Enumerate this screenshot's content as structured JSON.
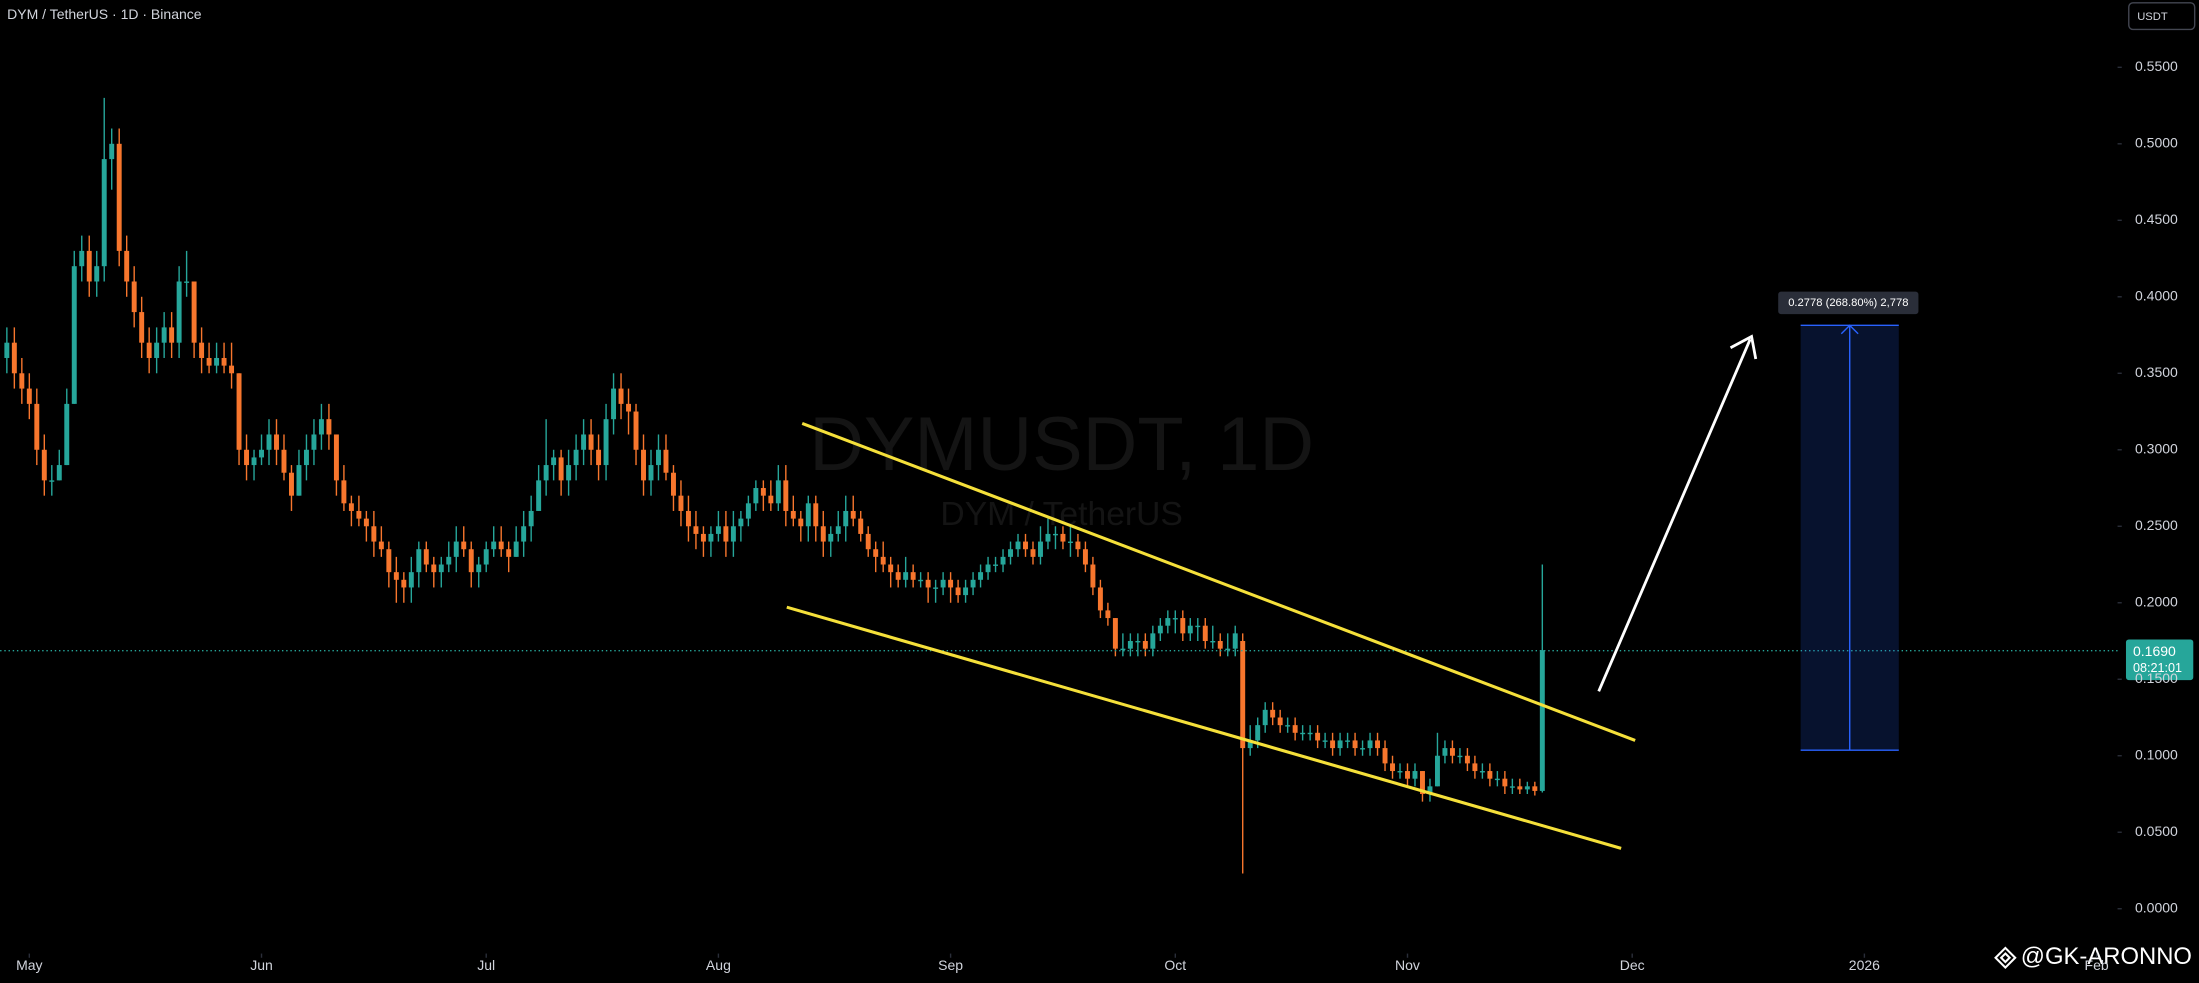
{
  "chart_data": {
    "type": "candlestick",
    "title": "DYM / TetherUS · 1D · Binance",
    "watermark": "DYMUSDT, 1D",
    "watermark_subtitle": "DYM / TetherUS",
    "currency": "USDT",
    "price_label": "0.1690",
    "countdown": "08:21:01",
    "measure_label": "0.2778 (268.80%) 2,778",
    "credit": "@GK-ARONNO",
    "up_color": "#26a69a",
    "down_color": "#f7762d",
    "xlim": [
      -0.9,
      281.8
    ],
    "xticks": [
      {
        "value": 3,
        "label": "May"
      },
      {
        "value": 34,
        "label": "Jun"
      },
      {
        "value": 64,
        "label": "Jul"
      },
      {
        "value": 95,
        "label": "Aug"
      },
      {
        "value": 126,
        "label": "Sep"
      },
      {
        "value": 156,
        "label": "Oct"
      },
      {
        "value": 187,
        "label": "Nov"
      },
      {
        "value": 217,
        "label": "Dec"
      },
      {
        "value": 248,
        "label": "2026"
      },
      {
        "value": 279,
        "label": "Feb"
      }
    ],
    "ylim": [
      -0.0293,
      0.594
    ],
    "yticks": [
      {
        "value": 0,
        "label": "0.0000"
      },
      {
        "value": 0.05,
        "label": "0.0500"
      },
      {
        "value": 0.1,
        "label": "0.1000"
      },
      {
        "value": 0.15,
        "label": "0.1500"
      },
      {
        "value": 0.2,
        "label": "0.2000"
      },
      {
        "value": 0.25,
        "label": "0.2500"
      },
      {
        "value": 0.3,
        "label": "0.3000"
      },
      {
        "value": 0.35,
        "label": "0.3500"
      },
      {
        "value": 0.4,
        "label": "0.4000"
      },
      {
        "value": 0.45,
        "label": "0.4500"
      },
      {
        "value": 0.5,
        "label": "0.5000"
      },
      {
        "value": 0.55,
        "label": "0.5500"
      }
    ],
    "candles": [
      [
        0.36,
        0.38,
        0.35,
        0.37
      ],
      [
        0.37,
        0.38,
        0.34,
        0.35
      ],
      [
        0.35,
        0.36,
        0.33,
        0.34
      ],
      [
        0.34,
        0.35,
        0.32,
        0.33
      ],
      [
        0.33,
        0.34,
        0.29,
        0.3
      ],
      [
        0.3,
        0.31,
        0.27,
        0.28
      ],
      [
        0.28,
        0.29,
        0.27,
        0.28
      ],
      [
        0.28,
        0.3,
        0.28,
        0.29
      ],
      [
        0.29,
        0.34,
        0.29,
        0.33
      ],
      [
        0.33,
        0.43,
        0.33,
        0.42
      ],
      [
        0.42,
        0.44,
        0.41,
        0.43
      ],
      [
        0.43,
        0.44,
        0.4,
        0.41
      ],
      [
        0.41,
        0.43,
        0.4,
        0.42
      ],
      [
        0.42,
        0.53,
        0.41,
        0.49
      ],
      [
        0.49,
        0.51,
        0.47,
        0.5
      ],
      [
        0.5,
        0.51,
        0.42,
        0.43
      ],
      [
        0.43,
        0.44,
        0.4,
        0.41
      ],
      [
        0.41,
        0.42,
        0.38,
        0.39
      ],
      [
        0.39,
        0.4,
        0.36,
        0.37
      ],
      [
        0.37,
        0.38,
        0.35,
        0.36
      ],
      [
        0.36,
        0.38,
        0.35,
        0.37
      ],
      [
        0.37,
        0.39,
        0.36,
        0.38
      ],
      [
        0.38,
        0.39,
        0.36,
        0.37
      ],
      [
        0.37,
        0.42,
        0.36,
        0.41
      ],
      [
        0.41,
        0.43,
        0.4,
        0.41
      ],
      [
        0.41,
        0.41,
        0.36,
        0.37
      ],
      [
        0.37,
        0.38,
        0.35,
        0.36
      ],
      [
        0.36,
        0.37,
        0.35,
        0.355
      ],
      [
        0.355,
        0.37,
        0.35,
        0.36
      ],
      [
        0.36,
        0.37,
        0.35,
        0.355
      ],
      [
        0.355,
        0.37,
        0.34,
        0.35
      ],
      [
        0.35,
        0.35,
        0.29,
        0.3
      ],
      [
        0.3,
        0.31,
        0.28,
        0.29
      ],
      [
        0.29,
        0.3,
        0.28,
        0.295
      ],
      [
        0.295,
        0.31,
        0.29,
        0.3
      ],
      [
        0.3,
        0.32,
        0.29,
        0.31
      ],
      [
        0.31,
        0.32,
        0.29,
        0.3
      ],
      [
        0.3,
        0.31,
        0.28,
        0.285
      ],
      [
        0.285,
        0.29,
        0.26,
        0.27
      ],
      [
        0.27,
        0.3,
        0.27,
        0.29
      ],
      [
        0.29,
        0.31,
        0.28,
        0.3
      ],
      [
        0.3,
        0.32,
        0.29,
        0.31
      ],
      [
        0.31,
        0.33,
        0.3,
        0.32
      ],
      [
        0.32,
        0.33,
        0.3,
        0.31
      ],
      [
        0.31,
        0.31,
        0.27,
        0.28
      ],
      [
        0.28,
        0.29,
        0.26,
        0.265
      ],
      [
        0.265,
        0.27,
        0.25,
        0.26
      ],
      [
        0.26,
        0.27,
        0.25,
        0.255
      ],
      [
        0.255,
        0.26,
        0.24,
        0.25
      ],
      [
        0.25,
        0.26,
        0.23,
        0.24
      ],
      [
        0.24,
        0.25,
        0.23,
        0.235
      ],
      [
        0.235,
        0.24,
        0.21,
        0.22
      ],
      [
        0.22,
        0.23,
        0.2,
        0.215
      ],
      [
        0.215,
        0.22,
        0.2,
        0.21
      ],
      [
        0.21,
        0.23,
        0.2,
        0.22
      ],
      [
        0.22,
        0.24,
        0.21,
        0.235
      ],
      [
        0.235,
        0.24,
        0.22,
        0.225
      ],
      [
        0.225,
        0.23,
        0.21,
        0.22
      ],
      [
        0.22,
        0.23,
        0.21,
        0.225
      ],
      [
        0.225,
        0.24,
        0.22,
        0.23
      ],
      [
        0.23,
        0.25,
        0.22,
        0.24
      ],
      [
        0.24,
        0.25,
        0.23,
        0.235
      ],
      [
        0.235,
        0.24,
        0.21,
        0.22
      ],
      [
        0.22,
        0.23,
        0.21,
        0.225
      ],
      [
        0.225,
        0.24,
        0.22,
        0.235
      ],
      [
        0.235,
        0.25,
        0.23,
        0.24
      ],
      [
        0.24,
        0.25,
        0.23,
        0.235
      ],
      [
        0.235,
        0.24,
        0.22,
        0.23
      ],
      [
        0.23,
        0.25,
        0.23,
        0.24
      ],
      [
        0.24,
        0.26,
        0.23,
        0.25
      ],
      [
        0.25,
        0.27,
        0.24,
        0.26
      ],
      [
        0.26,
        0.29,
        0.26,
        0.28
      ],
      [
        0.28,
        0.32,
        0.27,
        0.29
      ],
      [
        0.29,
        0.3,
        0.28,
        0.295
      ],
      [
        0.295,
        0.3,
        0.27,
        0.28
      ],
      [
        0.28,
        0.3,
        0.27,
        0.29
      ],
      [
        0.29,
        0.31,
        0.28,
        0.3
      ],
      [
        0.3,
        0.32,
        0.29,
        0.31
      ],
      [
        0.31,
        0.32,
        0.29,
        0.3
      ],
      [
        0.3,
        0.31,
        0.28,
        0.29
      ],
      [
        0.29,
        0.33,
        0.28,
        0.32
      ],
      [
        0.32,
        0.35,
        0.31,
        0.34
      ],
      [
        0.34,
        0.35,
        0.32,
        0.33
      ],
      [
        0.33,
        0.34,
        0.31,
        0.325
      ],
      [
        0.325,
        0.33,
        0.29,
        0.3
      ],
      [
        0.3,
        0.31,
        0.27,
        0.28
      ],
      [
        0.28,
        0.3,
        0.27,
        0.29
      ],
      [
        0.29,
        0.31,
        0.28,
        0.3
      ],
      [
        0.3,
        0.31,
        0.28,
        0.285
      ],
      [
        0.285,
        0.29,
        0.26,
        0.27
      ],
      [
        0.27,
        0.28,
        0.25,
        0.26
      ],
      [
        0.26,
        0.27,
        0.24,
        0.25
      ],
      [
        0.25,
        0.26,
        0.235,
        0.245
      ],
      [
        0.245,
        0.25,
        0.23,
        0.24
      ],
      [
        0.24,
        0.25,
        0.23,
        0.245
      ],
      [
        0.245,
        0.26,
        0.24,
        0.25
      ],
      [
        0.25,
        0.26,
        0.23,
        0.24
      ],
      [
        0.24,
        0.26,
        0.23,
        0.25
      ],
      [
        0.25,
        0.26,
        0.24,
        0.255
      ],
      [
        0.255,
        0.27,
        0.25,
        0.265
      ],
      [
        0.265,
        0.28,
        0.26,
        0.275
      ],
      [
        0.275,
        0.28,
        0.26,
        0.27
      ],
      [
        0.27,
        0.28,
        0.26,
        0.265
      ],
      [
        0.265,
        0.29,
        0.26,
        0.28
      ],
      [
        0.28,
        0.29,
        0.25,
        0.26
      ],
      [
        0.26,
        0.27,
        0.25,
        0.255
      ],
      [
        0.255,
        0.26,
        0.24,
        0.25
      ],
      [
        0.25,
        0.27,
        0.24,
        0.265
      ],
      [
        0.265,
        0.27,
        0.24,
        0.25
      ],
      [
        0.25,
        0.26,
        0.23,
        0.24
      ],
      [
        0.24,
        0.25,
        0.23,
        0.245
      ],
      [
        0.245,
        0.26,
        0.24,
        0.25
      ],
      [
        0.25,
        0.27,
        0.24,
        0.26
      ],
      [
        0.26,
        0.27,
        0.25,
        0.255
      ],
      [
        0.255,
        0.26,
        0.24,
        0.245
      ],
      [
        0.245,
        0.25,
        0.23,
        0.235
      ],
      [
        0.235,
        0.24,
        0.22,
        0.23
      ],
      [
        0.23,
        0.24,
        0.22,
        0.225
      ],
      [
        0.225,
        0.23,
        0.21,
        0.22
      ],
      [
        0.22,
        0.225,
        0.21,
        0.215
      ],
      [
        0.215,
        0.23,
        0.21,
        0.22
      ],
      [
        0.22,
        0.225,
        0.21,
        0.215
      ],
      [
        0.215,
        0.22,
        0.21,
        0.215
      ],
      [
        0.215,
        0.22,
        0.2,
        0.21
      ],
      [
        0.21,
        0.215,
        0.2,
        0.21
      ],
      [
        0.21,
        0.22,
        0.205,
        0.215
      ],
      [
        0.215,
        0.22,
        0.2,
        0.21
      ],
      [
        0.21,
        0.215,
        0.2,
        0.205
      ],
      [
        0.205,
        0.215,
        0.2,
        0.21
      ],
      [
        0.21,
        0.22,
        0.205,
        0.215
      ],
      [
        0.215,
        0.225,
        0.21,
        0.22
      ],
      [
        0.22,
        0.23,
        0.215,
        0.225
      ],
      [
        0.225,
        0.23,
        0.22,
        0.225
      ],
      [
        0.225,
        0.235,
        0.22,
        0.23
      ],
      [
        0.23,
        0.24,
        0.225,
        0.235
      ],
      [
        0.235,
        0.245,
        0.23,
        0.24
      ],
      [
        0.24,
        0.245,
        0.23,
        0.235
      ],
      [
        0.235,
        0.24,
        0.225,
        0.23
      ],
      [
        0.23,
        0.25,
        0.225,
        0.24
      ],
      [
        0.24,
        0.255,
        0.235,
        0.245
      ],
      [
        0.245,
        0.25,
        0.235,
        0.245
      ],
      [
        0.245,
        0.25,
        0.235,
        0.24
      ],
      [
        0.24,
        0.25,
        0.23,
        0.24
      ],
      [
        0.24,
        0.245,
        0.23,
        0.235
      ],
      [
        0.235,
        0.24,
        0.22,
        0.225
      ],
      [
        0.225,
        0.23,
        0.205,
        0.21
      ],
      [
        0.21,
        0.215,
        0.19,
        0.195
      ],
      [
        0.195,
        0.2,
        0.185,
        0.19
      ],
      [
        0.19,
        0.19,
        0.165,
        0.17
      ],
      [
        0.17,
        0.18,
        0.165,
        0.17
      ],
      [
        0.17,
        0.18,
        0.165,
        0.175
      ],
      [
        0.175,
        0.18,
        0.165,
        0.175
      ],
      [
        0.175,
        0.18,
        0.165,
        0.17
      ],
      [
        0.17,
        0.185,
        0.165,
        0.18
      ],
      [
        0.18,
        0.19,
        0.175,
        0.185
      ],
      [
        0.185,
        0.195,
        0.18,
        0.19
      ],
      [
        0.19,
        0.195,
        0.18,
        0.19
      ],
      [
        0.19,
        0.195,
        0.175,
        0.18
      ],
      [
        0.18,
        0.19,
        0.175,
        0.185
      ],
      [
        0.185,
        0.19,
        0.175,
        0.185
      ],
      [
        0.185,
        0.19,
        0.17,
        0.175
      ],
      [
        0.175,
        0.185,
        0.17,
        0.175
      ],
      [
        0.175,
        0.18,
        0.165,
        0.17
      ],
      [
        0.17,
        0.18,
        0.165,
        0.17
      ],
      [
        0.17,
        0.185,
        0.165,
        0.18
      ],
      [
        0.175,
        0.18,
        0.023,
        0.105
      ],
      [
        0.105,
        0.12,
        0.1,
        0.11
      ],
      [
        0.11,
        0.125,
        0.105,
        0.12
      ],
      [
        0.12,
        0.135,
        0.115,
        0.13
      ],
      [
        0.13,
        0.135,
        0.12,
        0.125
      ],
      [
        0.125,
        0.13,
        0.115,
        0.12
      ],
      [
        0.12,
        0.125,
        0.115,
        0.12
      ],
      [
        0.12,
        0.125,
        0.11,
        0.115
      ],
      [
        0.115,
        0.12,
        0.11,
        0.115
      ],
      [
        0.115,
        0.12,
        0.11,
        0.115
      ],
      [
        0.115,
        0.12,
        0.105,
        0.11
      ],
      [
        0.11,
        0.115,
        0.105,
        0.11
      ],
      [
        0.11,
        0.115,
        0.1,
        0.105
      ],
      [
        0.105,
        0.115,
        0.1,
        0.11
      ],
      [
        0.11,
        0.115,
        0.105,
        0.11
      ],
      [
        0.11,
        0.115,
        0.1,
        0.105
      ],
      [
        0.105,
        0.11,
        0.1,
        0.105
      ],
      [
        0.105,
        0.115,
        0.1,
        0.11
      ],
      [
        0.11,
        0.115,
        0.1,
        0.105
      ],
      [
        0.105,
        0.11,
        0.09,
        0.095
      ],
      [
        0.095,
        0.1,
        0.085,
        0.09
      ],
      [
        0.09,
        0.095,
        0.085,
        0.09
      ],
      [
        0.09,
        0.095,
        0.08,
        0.085
      ],
      [
        0.085,
        0.095,
        0.08,
        0.09
      ],
      [
        0.09,
        0.09,
        0.07,
        0.075
      ],
      [
        0.075,
        0.085,
        0.07,
        0.08
      ],
      [
        0.08,
        0.115,
        0.08,
        0.1
      ],
      [
        0.1,
        0.11,
        0.095,
        0.105
      ],
      [
        0.105,
        0.11,
        0.095,
        0.1
      ],
      [
        0.1,
        0.105,
        0.095,
        0.1
      ],
      [
        0.1,
        0.105,
        0.09,
        0.095
      ],
      [
        0.095,
        0.1,
        0.085,
        0.09
      ],
      [
        0.09,
        0.095,
        0.085,
        0.09
      ],
      [
        0.09,
        0.095,
        0.08,
        0.085
      ],
      [
        0.085,
        0.09,
        0.08,
        0.085
      ],
      [
        0.085,
        0.09,
        0.075,
        0.08
      ],
      [
        0.08,
        0.085,
        0.075,
        0.08
      ],
      [
        0.08,
        0.085,
        0.075,
        0.078
      ],
      [
        0.078,
        0.083,
        0.075,
        0.08
      ],
      [
        0.08,
        0.083,
        0.074,
        0.077
      ],
      [
        0.077,
        0.225,
        0.076,
        0.169
      ]
    ]
  }
}
